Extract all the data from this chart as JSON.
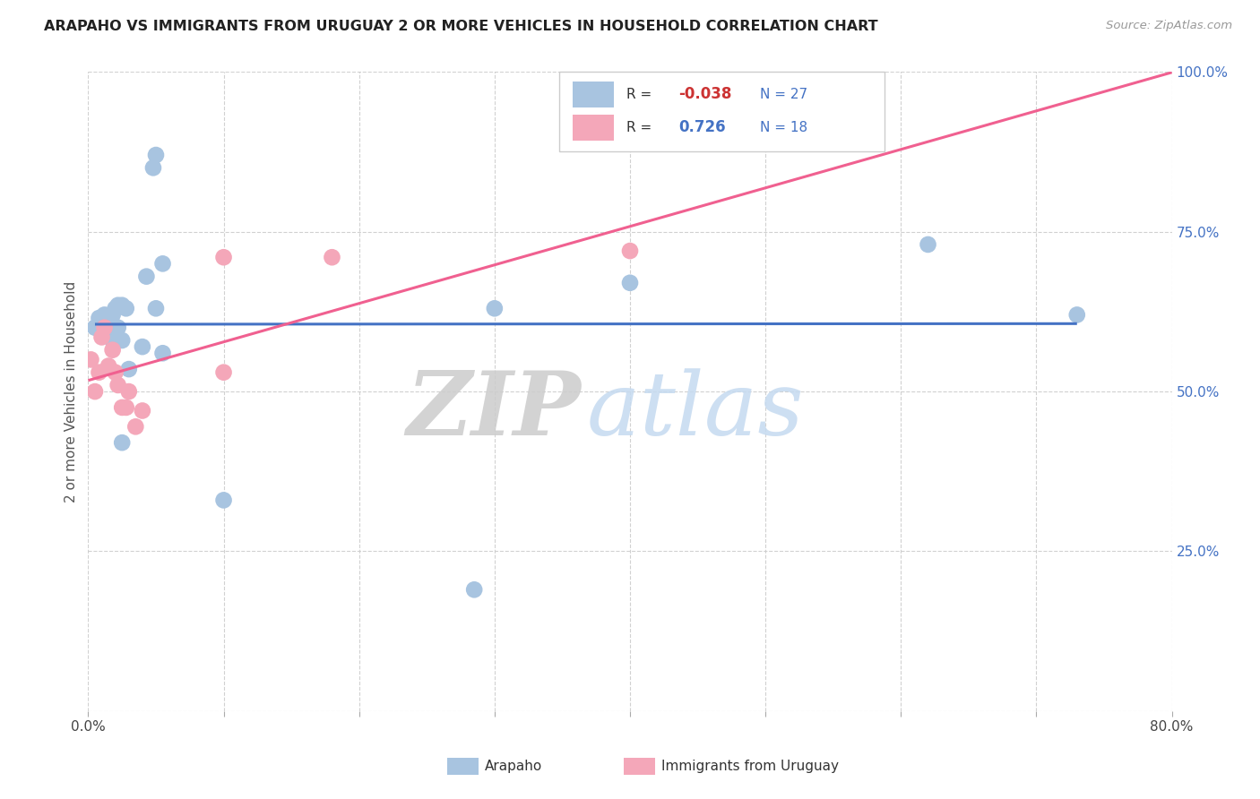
{
  "title": "ARAPAHO VS IMMIGRANTS FROM URUGUAY 2 OR MORE VEHICLES IN HOUSEHOLD CORRELATION CHART",
  "source": "Source: ZipAtlas.com",
  "ylabel": "2 or more Vehicles in Household",
  "xlim": [
    0,
    0.8
  ],
  "ylim": [
    0,
    1.0
  ],
  "xticks": [
    0.0,
    0.1,
    0.2,
    0.3,
    0.4,
    0.5,
    0.6,
    0.7,
    0.8
  ],
  "yticks_right": [
    0.0,
    0.25,
    0.5,
    0.75,
    1.0
  ],
  "ytick_right_labels": [
    "",
    "25.0%",
    "50.0%",
    "75.0%",
    "100.0%"
  ],
  "arapaho_color": "#a8c4e0",
  "uruguay_color": "#f4a7b9",
  "arapaho_line_color": "#4472c4",
  "uruguay_line_color": "#f06090",
  "legend_label1": "Arapaho",
  "legend_label2": "Immigrants from Uruguay",
  "R1": -0.038,
  "N1": 27,
  "R2": 0.726,
  "N2": 18,
  "arapaho_x": [
    0.005,
    0.008,
    0.012,
    0.015,
    0.018,
    0.018,
    0.02,
    0.022,
    0.022,
    0.025,
    0.025,
    0.025,
    0.028,
    0.03,
    0.04,
    0.043,
    0.048,
    0.05,
    0.05,
    0.055,
    0.055,
    0.1,
    0.285,
    0.3,
    0.4,
    0.62,
    0.73
  ],
  "arapaho_y": [
    0.6,
    0.615,
    0.62,
    0.615,
    0.58,
    0.62,
    0.63,
    0.6,
    0.635,
    0.58,
    0.635,
    0.42,
    0.63,
    0.535,
    0.57,
    0.68,
    0.85,
    0.87,
    0.63,
    0.7,
    0.56,
    0.33,
    0.19,
    0.63,
    0.67,
    0.73,
    0.62
  ],
  "uruguay_x": [
    0.002,
    0.005,
    0.008,
    0.01,
    0.012,
    0.015,
    0.018,
    0.02,
    0.022,
    0.025,
    0.028,
    0.03,
    0.035,
    0.04,
    0.1,
    0.1,
    0.18,
    0.4
  ],
  "uruguay_y": [
    0.55,
    0.5,
    0.53,
    0.585,
    0.6,
    0.54,
    0.565,
    0.53,
    0.51,
    0.475,
    0.475,
    0.5,
    0.445,
    0.47,
    0.71,
    0.53,
    0.71,
    0.72
  ],
  "background_color": "#ffffff",
  "grid_color": "#cccccc"
}
